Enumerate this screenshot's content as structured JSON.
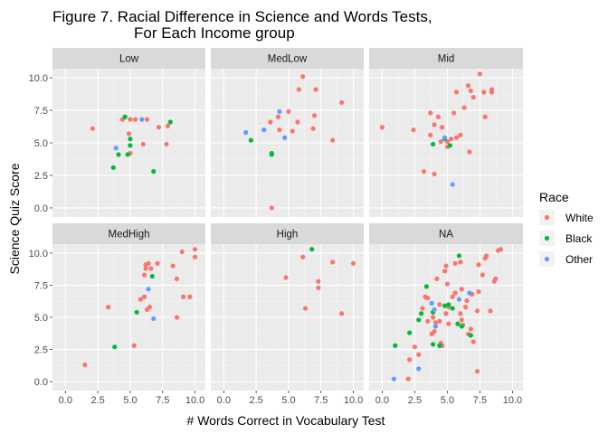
{
  "chart_data": {
    "type": "scatter",
    "title_lines": [
      "Figure 7. Racial Difference in Science and Words Tests,",
      "For Each Income group"
    ],
    "xlabel": "# Words Correct in Vocabulary Test",
    "ylabel": "Science Quiz Score",
    "xlim": [
      -1,
      10.8
    ],
    "ylim": [
      -0.7,
      10.7
    ],
    "x_ticks": [
      0,
      2.5,
      5,
      7.5,
      10
    ],
    "x_tick_labels": [
      "0.0",
      "2.5",
      "5.0",
      "7.5",
      "10.0"
    ],
    "y_ticks": [
      0,
      2.5,
      5,
      7.5,
      10
    ],
    "y_tick_labels": [
      "0.0",
      "2.5",
      "5.0",
      "7.5",
      "10.0"
    ],
    "grid": true,
    "legend": {
      "title": "Race",
      "position": "right",
      "entries": [
        {
          "name": "White",
          "color": "#F8766D"
        },
        {
          "name": "Black",
          "color": "#00BA38"
        },
        {
          "name": "Other",
          "color": "#619CFF"
        }
      ]
    },
    "panels": [
      {
        "label": "Low",
        "series": [
          {
            "name": "White",
            "points": [
              [
                2.1,
                6.1
              ],
              [
                4.4,
                6.8
              ],
              [
                5.0,
                6.8
              ],
              [
                5.4,
                6.8
              ],
              [
                6.0,
                4.9
              ],
              [
                6.3,
                6.8
              ],
              [
                4.9,
                5.7
              ],
              [
                5.0,
                4.2
              ],
              [
                7.2,
                6.2
              ],
              [
                7.9,
                6.3
              ],
              [
                7.8,
                4.9
              ]
            ]
          },
          {
            "name": "Black",
            "points": [
              [
                4.6,
                7.0
              ],
              [
                3.7,
                3.1
              ],
              [
                4.1,
                4.1
              ],
              [
                4.8,
                4.1
              ],
              [
                5.0,
                4.8
              ],
              [
                5.0,
                5.3
              ],
              [
                6.8,
                2.8
              ],
              [
                8.1,
                6.6
              ]
            ]
          },
          {
            "name": "Other",
            "points": [
              [
                3.9,
                4.6
              ],
              [
                5.9,
                6.8
              ]
            ]
          }
        ]
      },
      {
        "label": "MedLow",
        "series": [
          {
            "name": "White",
            "points": [
              [
                5.8,
                9.1
              ],
              [
                6.1,
                10.1
              ],
              [
                7.1,
                9.1
              ],
              [
                7.0,
                7.1
              ],
              [
                3.6,
                6.6
              ],
              [
                4.2,
                7.0
              ],
              [
                5.0,
                7.4
              ],
              [
                5.7,
                6.6
              ],
              [
                6.9,
                6.1
              ],
              [
                5.3,
                5.9
              ],
              [
                8.4,
                5.2
              ],
              [
                9.1,
                8.1
              ],
              [
                3.7,
                0.0
              ],
              [
                4.3,
                6.0
              ]
            ]
          },
          {
            "name": "Black",
            "points": [
              [
                2.1,
                5.2
              ],
              [
                3.7,
                4.2
              ],
              [
                3.7,
                4.1
              ]
            ]
          },
          {
            "name": "Other",
            "points": [
              [
                1.7,
                5.8
              ],
              [
                3.1,
                6.0
              ],
              [
                4.3,
                7.4
              ],
              [
                4.7,
                5.4
              ]
            ]
          }
        ]
      },
      {
        "label": "Mid",
        "series": [
          {
            "name": "White",
            "points": [
              [
                0.0,
                6.2
              ],
              [
                2.4,
                6.0
              ],
              [
                3.7,
                5.6
              ],
              [
                4.0,
                6.4
              ],
              [
                4.3,
                7.0
              ],
              [
                4.5,
                5.1
              ],
              [
                4.6,
                6.2
              ],
              [
                5.0,
                4.7
              ],
              [
                5.3,
                5.3
              ],
              [
                5.5,
                7.3
              ],
              [
                5.7,
                8.9
              ],
              [
                5.7,
                5.4
              ],
              [
                6.0,
                5.6
              ],
              [
                6.3,
                7.7
              ],
              [
                6.7,
                4.3
              ],
              [
                6.8,
                9.0
              ],
              [
                7.0,
                8.5
              ],
              [
                7.5,
                10.3
              ],
              [
                7.8,
                8.9
              ],
              [
                8.4,
                9.1
              ],
              [
                8.4,
                8.9
              ],
              [
                7.9,
                7.0
              ],
              [
                3.2,
                2.8
              ],
              [
                4.0,
                2.6
              ],
              [
                5.0,
                5.1
              ],
              [
                3.7,
                7.3
              ],
              [
                6.6,
                9.4
              ]
            ]
          },
          {
            "name": "Black",
            "points": [
              [
                3.9,
                4.9
              ],
              [
                4.8,
                5.3
              ],
              [
                5.2,
                4.8
              ]
            ]
          },
          {
            "name": "Other",
            "points": [
              [
                4.8,
                5.4
              ],
              [
                5.4,
                1.8
              ]
            ]
          }
        ]
      },
      {
        "label": "MedHigh",
        "series": [
          {
            "name": "White",
            "points": [
              [
                1.5,
                1.3
              ],
              [
                3.3,
                5.8
              ],
              [
                5.3,
                2.8
              ],
              [
                5.8,
                6.4
              ],
              [
                6.1,
                6.6
              ],
              [
                6.1,
                8.3
              ],
              [
                6.2,
                9.1
              ],
              [
                6.2,
                8.8
              ],
              [
                6.4,
                9.2
              ],
              [
                6.5,
                5.8
              ],
              [
                6.6,
                8.8
              ],
              [
                7.1,
                9.2
              ],
              [
                8.3,
                9.0
              ],
              [
                8.6,
                8.0
              ],
              [
                9.0,
                10.1
              ],
              [
                9.1,
                6.6
              ],
              [
                9.6,
                6.6
              ],
              [
                10.0,
                10.3
              ],
              [
                10.0,
                9.7
              ],
              [
                8.6,
                5.0
              ],
              [
                6.3,
                5.6
              ]
            ]
          },
          {
            "name": "Black",
            "points": [
              [
                3.8,
                2.7
              ],
              [
                5.5,
                5.4
              ],
              [
                6.7,
                8.2
              ]
            ]
          },
          {
            "name": "Other",
            "points": [
              [
                6.4,
                7.2
              ],
              [
                6.8,
                4.9
              ]
            ]
          }
        ]
      },
      {
        "label": "High",
        "series": [
          {
            "name": "White",
            "points": [
              [
                4.8,
                8.1
              ],
              [
                6.1,
                9.7
              ],
              [
                6.3,
                5.7
              ],
              [
                7.3,
                7.8
              ],
              [
                7.3,
                7.3
              ],
              [
                8.4,
                9.3
              ],
              [
                9.1,
                5.3
              ],
              [
                10.0,
                9.2
              ]
            ]
          },
          {
            "name": "Black",
            "points": [
              [
                6.8,
                10.3
              ]
            ]
          },
          {
            "name": "Other",
            "points": []
          }
        ]
      },
      {
        "label": "NA",
        "series": [
          {
            "name": "White",
            "points": [
              [
                2.0,
                0.2
              ],
              [
                2.1,
                1.7
              ],
              [
                2.5,
                2.7
              ],
              [
                2.8,
                2.1
              ],
              [
                3.1,
                5.7
              ],
              [
                3.3,
                6.6
              ],
              [
                3.5,
                4.7
              ],
              [
                3.8,
                3.7
              ],
              [
                3.9,
                5.0
              ],
              [
                4.0,
                3.9
              ],
              [
                4.1,
                4.6
              ],
              [
                4.2,
                8.0
              ],
              [
                4.4,
                4.7
              ],
              [
                4.4,
                6.0
              ],
              [
                4.6,
                2.8
              ],
              [
                4.8,
                8.6
              ],
              [
                4.9,
                9.0
              ],
              [
                5.0,
                7.6
              ],
              [
                5.1,
                5.8
              ],
              [
                5.4,
                6.6
              ],
              [
                5.6,
                9.2
              ],
              [
                5.8,
                4.5
              ],
              [
                6.0,
                9.3
              ],
              [
                6.0,
                5.3
              ],
              [
                6.1,
                4.8
              ],
              [
                6.2,
                4.4
              ],
              [
                6.4,
                5.8
              ],
              [
                6.5,
                6.3
              ],
              [
                6.8,
                4.1
              ],
              [
                6.9,
                6.8
              ],
              [
                7.0,
                3.1
              ],
              [
                7.3,
                0.8
              ],
              [
                7.3,
                5.5
              ],
              [
                7.4,
                7.0
              ],
              [
                7.7,
                8.3
              ],
              [
                7.9,
                9.6
              ],
              [
                8.0,
                9.8
              ],
              [
                8.3,
                5.5
              ],
              [
                8.6,
                7.8
              ],
              [
                8.7,
                8.0
              ],
              [
                8.9,
                10.2
              ],
              [
                9.1,
                10.3
              ],
              [
                5.1,
                4.5
              ],
              [
                4.5,
                3.0
              ],
              [
                5.6,
                6.9
              ],
              [
                6.1,
                7.2
              ],
              [
                3.5,
                6.5
              ],
              [
                4.9,
                5.3
              ],
              [
                7.4,
                9.1
              ],
              [
                6.6,
                3.7
              ]
            ]
          },
          {
            "name": "Black",
            "points": [
              [
                1.0,
                2.8
              ],
              [
                2.1,
                3.8
              ],
              [
                2.8,
                4.8
              ],
              [
                3.0,
                5.3
              ],
              [
                3.9,
                2.9
              ],
              [
                3.9,
                5.4
              ],
              [
                4.4,
                2.8
              ],
              [
                4.8,
                5.9
              ],
              [
                5.1,
                6.0
              ],
              [
                5.4,
                5.7
              ],
              [
                5.9,
                9.8
              ],
              [
                6.1,
                4.3
              ],
              [
                5.8,
                4.5
              ],
              [
                6.8,
                3.6
              ],
              [
                3.4,
                7.4
              ]
            ]
          },
          {
            "name": "Other",
            "points": [
              [
                0.9,
                0.2
              ],
              [
                2.8,
                1.0
              ],
              [
                3.8,
                6.1
              ],
              [
                4.0,
                5.6
              ],
              [
                5.9,
                6.4
              ],
              [
                6.7,
                6.9
              ],
              [
                4.1,
                4.3
              ]
            ]
          }
        ]
      }
    ]
  }
}
